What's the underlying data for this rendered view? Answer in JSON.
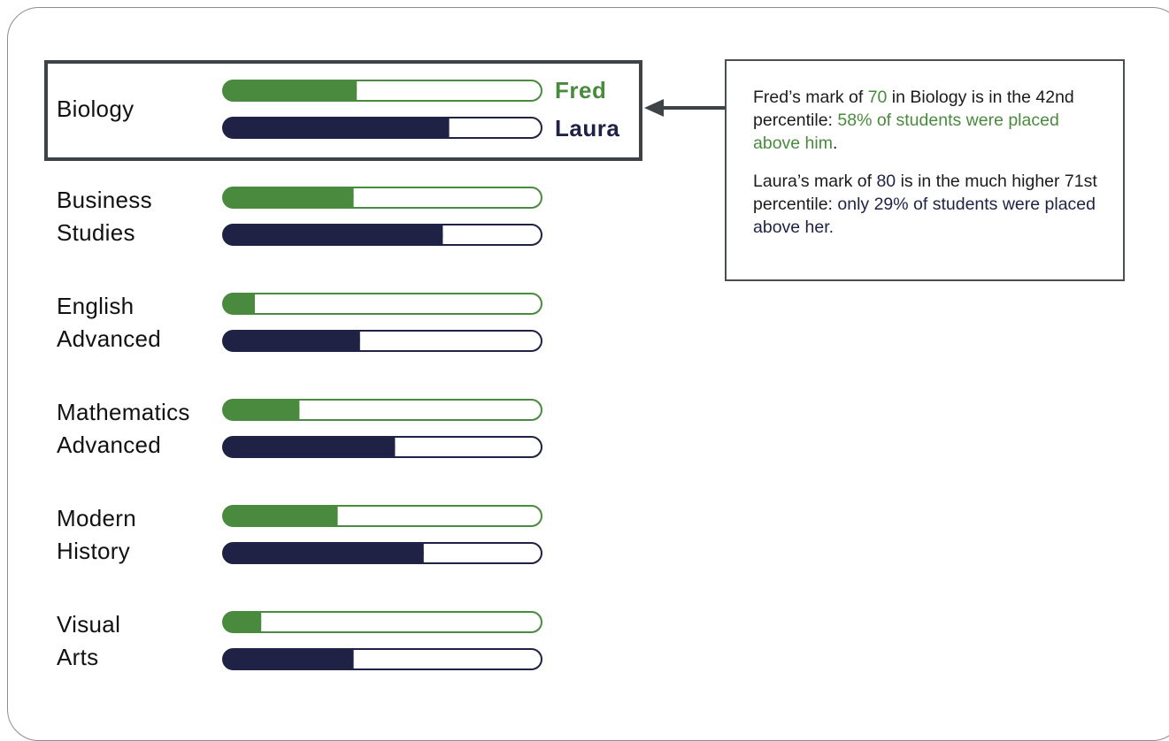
{
  "colors": {
    "fred": "#4a8a3f",
    "laura": "#1f2245",
    "highlight_border": "#3e4347"
  },
  "legend": {
    "fred": "Fred",
    "laura": "Laura"
  },
  "callout": {
    "fred_p1": "Fred’s mark of ",
    "fred_mark": "70",
    "fred_p2": " in Biology is in the 42nd percentile: ",
    "fred_highlight": "58% of students were placed above him",
    "fred_end": ".",
    "laura_p1": "Laura’s mark of ",
    "laura_mark": "80",
    "laura_p2": " is in the much higher 71st percentile: ",
    "laura_highlight": "only 29% of students were placed above her."
  },
  "chart_data": {
    "type": "bar",
    "orientation": "horizontal",
    "value_unit": "percentile",
    "xlim": [
      0,
      100
    ],
    "categories": [
      "Biology",
      "Business\nStudies",
      "English\nAdvanced",
      "Mathematics\nAdvanced",
      "Modern\nHistory",
      "Visual\nArts"
    ],
    "series": [
      {
        "name": "Fred",
        "values": [
          42,
          41,
          10,
          24,
          36,
          12
        ]
      },
      {
        "name": "Laura",
        "values": [
          71,
          69,
          43,
          54,
          63,
          41
        ]
      }
    ],
    "highlighted_category": "Biology"
  }
}
